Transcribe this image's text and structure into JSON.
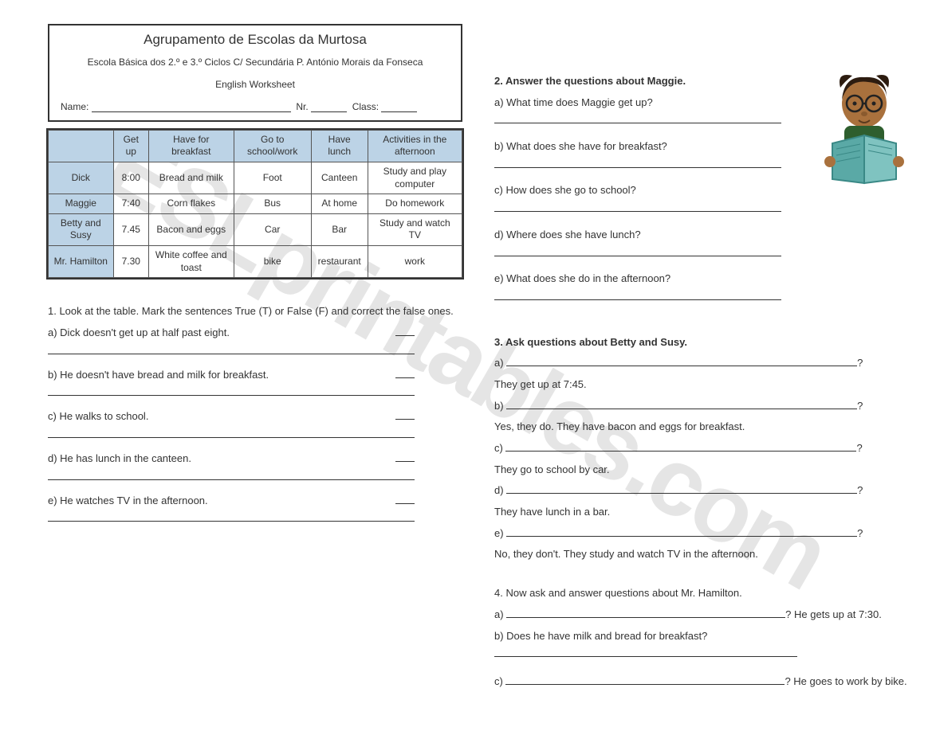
{
  "header": {
    "title": "Agrupamento de Escolas da Murtosa",
    "subtitle": "Escola Básica dos 2.º e 3.º Ciclos C/ Secundária P. António Morais da Fonseca",
    "worksheet": "English Worksheet",
    "name_label": "Name:",
    "nr_label": "Nr.",
    "class_label": "Class:"
  },
  "table": {
    "columns": [
      "",
      "Get up",
      "Have for breakfast",
      "Go to school/work",
      "Have lunch",
      "Activities in the afternoon"
    ],
    "rows": [
      {
        "who": "Dick",
        "cells": [
          "8:00",
          "Bread and milk",
          "Foot",
          "Canteen",
          "Study and play computer"
        ]
      },
      {
        "who": "Maggie",
        "cells": [
          "7:40",
          "Corn flakes",
          "Bus",
          "At home",
          "Do homework"
        ]
      },
      {
        "who": "Betty and Susy",
        "cells": [
          "7.45",
          "Bacon and eggs",
          "Car",
          "Bar",
          "Study and watch TV"
        ]
      },
      {
        "who": "Mr. Hamilton",
        "cells": [
          "7.30",
          "White coffee and toast",
          "bike",
          "restaurant",
          "work"
        ]
      }
    ],
    "header_bg": "#bcd3e6",
    "border_color": "#555555"
  },
  "ex1": {
    "instr": "1. Look at the table. Mark the sentences True (T) or False (F) and correct the false ones.",
    "items": [
      "a) Dick doesn't get up at half past eight.",
      "b) He doesn't have bread and milk for breakfast.",
      "c) He walks to school.",
      "d) He has lunch in the canteen.",
      "e) He watches TV in the afternoon."
    ]
  },
  "ex2": {
    "title": "2. Answer the questions about Maggie.",
    "items": [
      "a) What time does Maggie get up?",
      "b) What does she have for breakfast?",
      "c) How does she go to school?",
      "d) Where does she have lunch?",
      "e) What does she do in the afternoon?"
    ]
  },
  "ex3": {
    "title": "3. Ask questions about Betty and Susy.",
    "items": [
      {
        "letter": "a)",
        "answer": "They get up at 7:45."
      },
      {
        "letter": "b)",
        "answer": "Yes, they do. They have bacon and eggs for breakfast."
      },
      {
        "letter": "c)",
        "answer": "They go to school by car."
      },
      {
        "letter": "d)",
        "answer": "They have lunch in a bar."
      },
      {
        "letter": "e)",
        "answer": "No, they don't. They study and watch TV in the afternoon."
      }
    ]
  },
  "ex4": {
    "title": "4. Now ask and answer questions about Mr. Hamilton.",
    "a_tail": "? He gets up at 7:30.",
    "b": "b)  Does he have milk and bread for breakfast?",
    "c_tail": "? He goes to work by bike."
  },
  "watermark": "ESLprintables.com",
  "colors": {
    "text": "#333333",
    "background": "#ffffff",
    "watermark": "rgba(0,0,0,0.10)",
    "reader_skin": "#a9713d",
    "reader_hair": "#2d1c10",
    "reader_shirt": "#2e5e2e",
    "reader_book": "#5aa9a6"
  }
}
